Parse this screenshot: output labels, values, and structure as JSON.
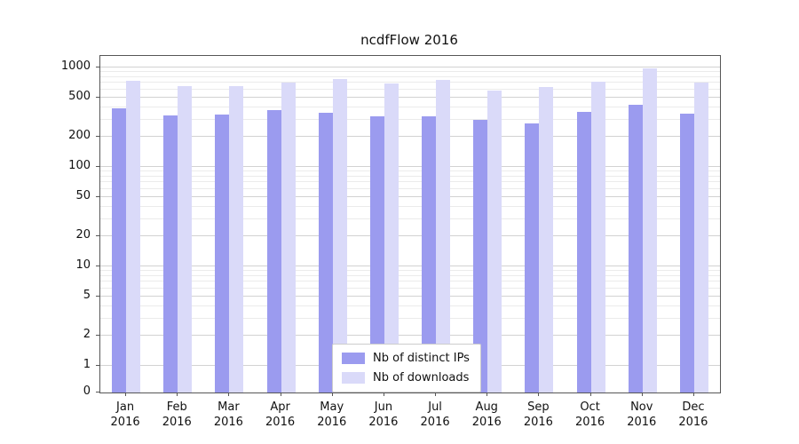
{
  "chart_data": {
    "type": "bar",
    "title": "ncdfFlow 2016",
    "categories": [
      "Jan",
      "Feb",
      "Mar",
      "Apr",
      "May",
      "Jun",
      "Jul",
      "Aug",
      "Sep",
      "Oct",
      "Nov",
      "Dec"
    ],
    "year_label": "2016",
    "series": [
      {
        "name": "Nb of distinct IPs",
        "color": "#9b9bef",
        "values": [
          390,
          330,
          335,
          370,
          350,
          320,
          320,
          295,
          275,
          355,
          420,
          340
        ]
      },
      {
        "name": "Nb of downloads",
        "color": "#dadaf9",
        "values": [
          730,
          650,
          655,
          710,
          770,
          690,
          750,
          590,
          630,
          715,
          980,
          700
        ]
      }
    ],
    "y_ticks": [
      0,
      1,
      2,
      5,
      10,
      20,
      50,
      100,
      200,
      500,
      1000
    ],
    "y_minor_ticks": [
      3,
      4,
      6,
      7,
      8,
      9,
      30,
      40,
      60,
      70,
      80,
      90,
      300,
      400,
      600,
      700,
      800,
      900
    ],
    "scale": "symlog",
    "ylim": [
      0,
      1100
    ],
    "grid": "horizontal",
    "legend_position": "bottom-center"
  }
}
